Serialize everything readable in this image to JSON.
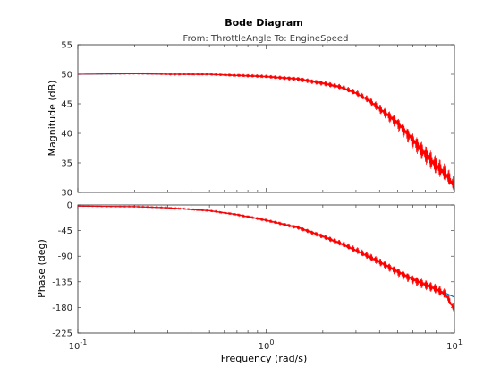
{
  "chart_data": {
    "type": "line",
    "title": "Bode Diagram",
    "subtitle": "From: ThrottleAngle  To: EngineSpeed",
    "xlabel": "Frequency  (rad/s)",
    "xscale": "log",
    "xlim": [
      0.1,
      10
    ],
    "x_tick_labels": [
      {
        "base": "10",
        "exp": "-1"
      },
      {
        "base": "10",
        "exp": "0"
      },
      {
        "base": "10",
        "exp": "1"
      }
    ],
    "grid": false,
    "panels": [
      {
        "name": "magnitude",
        "ylabel": "Magnitude (dB)",
        "ylim": [
          30,
          55
        ],
        "yticks": [
          30,
          35,
          40,
          45,
          50,
          55
        ],
        "series": [
          {
            "color": "#0072BD",
            "x": [
              0.1,
              0.2,
              0.3,
              0.5,
              0.7,
              1.0,
              1.5,
              2.0,
              2.5,
              3.0,
              3.5,
              4.0,
              5.0,
              6.0,
              7.0,
              8.0,
              9.0,
              10.0
            ],
            "y": [
              50.0,
              50.1,
              50.0,
              50.0,
              49.8,
              49.6,
              49.2,
              48.5,
              47.8,
              46.8,
              45.6,
              44.2,
              41.8,
              39.0,
              36.5,
              34.5,
              33.0,
              31.0
            ]
          },
          {
            "color": "#FF0000",
            "x": [
              0.1,
              0.2,
              0.3,
              0.5,
              0.7,
              1.0,
              1.5,
              2.0,
              2.5,
              3.0,
              3.5,
              4.0,
              5.0,
              6.0,
              7.0,
              8.0,
              9.0,
              10.0
            ],
            "y": [
              50.0,
              50.1,
              50.0,
              50.0,
              49.8,
              49.6,
              49.2,
              48.5,
              47.8,
              46.8,
              45.6,
              44.2,
              41.8,
              39.0,
              36.5,
              34.5,
              33.0,
              31.0
            ],
            "ripple_amp": [
              0.0,
              0.1,
              0.15,
              0.2,
              0.3,
              0.35,
              0.45,
              0.5,
              0.55,
              0.6,
              0.7,
              0.9,
              1.3,
              1.6,
              1.8,
              1.8,
              1.7,
              1.5
            ]
          }
        ]
      },
      {
        "name": "phase",
        "ylabel": "Phase (deg)",
        "ylim": [
          -225,
          0
        ],
        "yticks": [
          -225,
          -180,
          -135,
          -90,
          -45,
          0
        ],
        "series": [
          {
            "color": "#0072BD",
            "x": [
              0.1,
              0.2,
              0.3,
              0.5,
              0.7,
              1.0,
              1.5,
              2.0,
              2.5,
              3.0,
              4.0,
              5.0,
              6.0,
              7.0,
              8.0,
              9.0,
              10.0
            ],
            "y": [
              -2,
              -3,
              -5,
              -10,
              -17,
              -27,
              -40,
              -55,
              -68,
              -80,
              -100,
              -117,
              -130,
              -140,
              -148,
              -155,
              -162
            ]
          },
          {
            "color": "#FF0000",
            "x": [
              0.1,
              0.2,
              0.3,
              0.5,
              0.7,
              1.0,
              1.5,
              2.0,
              2.5,
              3.0,
              4.0,
              5.0,
              6.0,
              7.0,
              8.0,
              9.0,
              10.0
            ],
            "y": [
              -2,
              -3,
              -5,
              -10,
              -17,
              -27,
              -40,
              -55,
              -68,
              -80,
              -100,
              -117,
              -130,
              -140,
              -148,
              -158,
              -185
            ],
            "ripple_amp": [
              0.5,
              1,
              1.5,
              2,
              2.5,
              3,
              4,
              5,
              6,
              7,
              8,
              9,
              10,
              10,
              10,
              10,
              8
            ]
          }
        ]
      }
    ]
  }
}
